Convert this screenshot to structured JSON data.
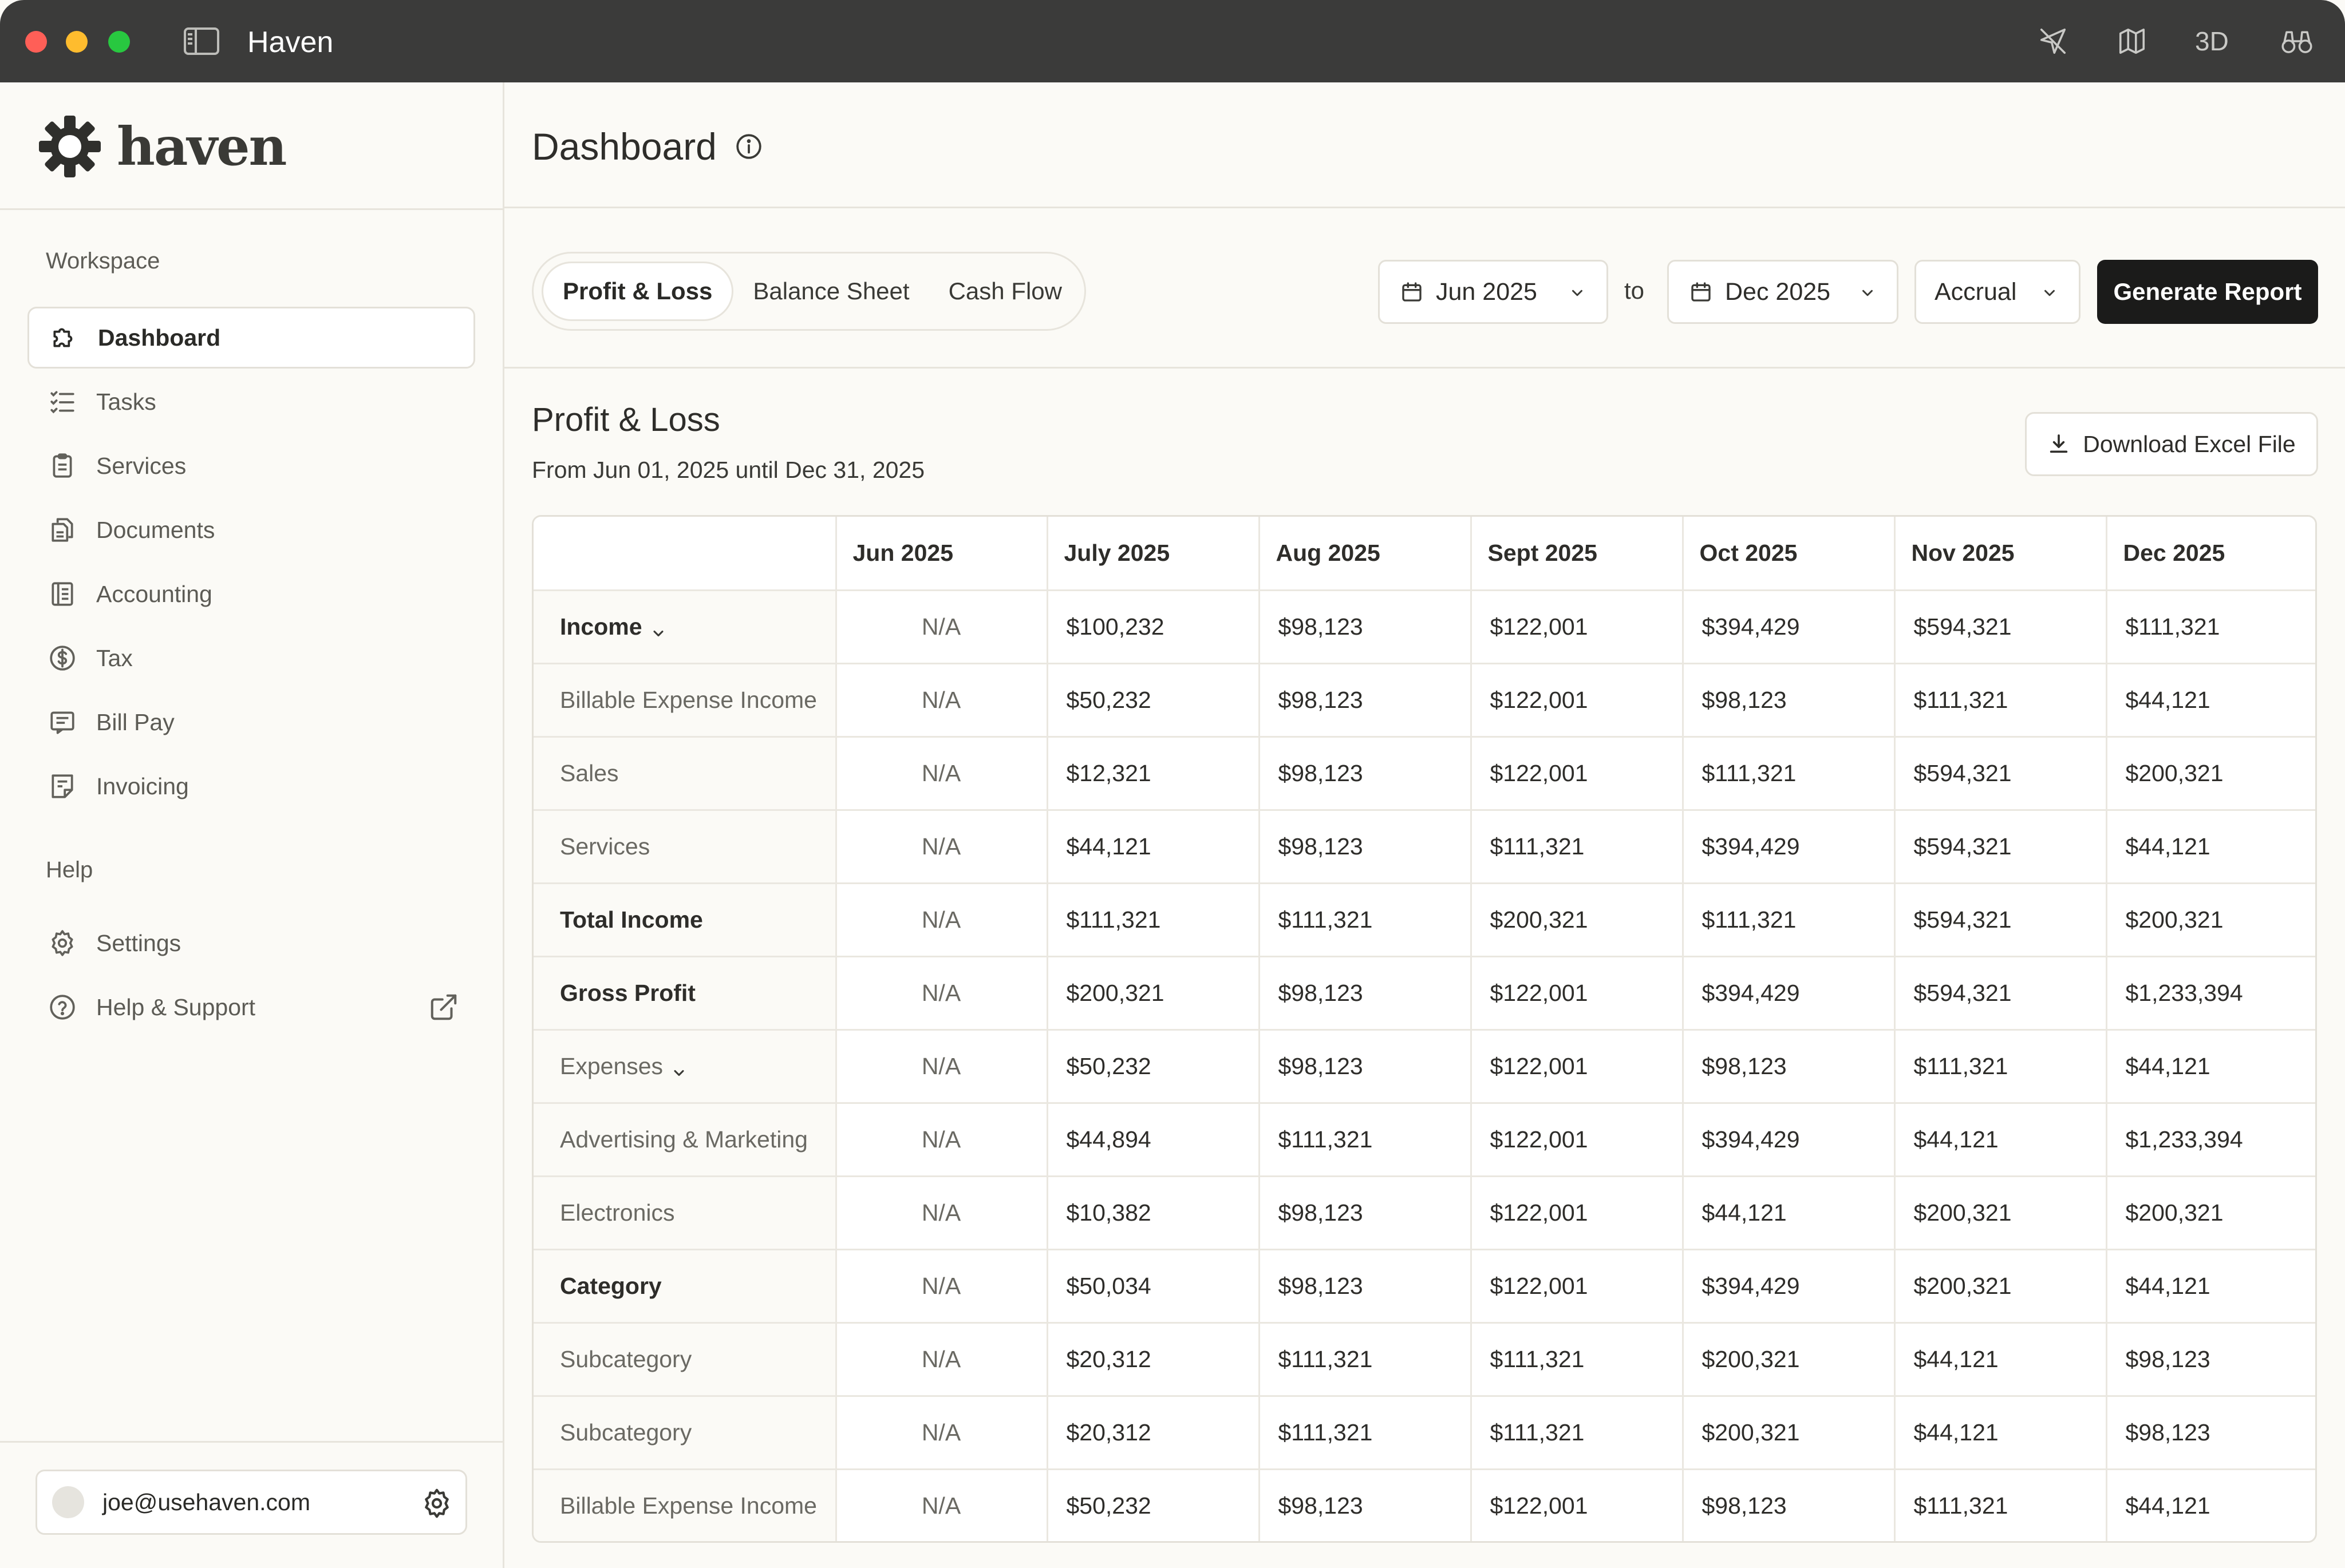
{
  "window": {
    "title": "Haven",
    "toolbar_icons": [
      "paper-plane-icon",
      "map-icon",
      "3d-label",
      "binoculars-icon"
    ],
    "toolbar_3d_label": "3D"
  },
  "brand": {
    "name": "haven",
    "logo": "haven-logo"
  },
  "sidebar": {
    "workspace_label": "Workspace",
    "items": [
      {
        "label": "Dashboard",
        "icon": "puzzle-icon",
        "active": true
      },
      {
        "label": "Tasks",
        "icon": "checklist-icon"
      },
      {
        "label": "Services",
        "icon": "clipboard-icon"
      },
      {
        "label": "Documents",
        "icon": "documents-icon"
      },
      {
        "label": "Accounting",
        "icon": "ledger-icon"
      },
      {
        "label": "Tax",
        "icon": "dollar-circle-icon"
      },
      {
        "label": "Bill Pay",
        "icon": "receipt-icon"
      },
      {
        "label": "Invoicing",
        "icon": "invoice-icon"
      }
    ],
    "help_label": "Help",
    "help_items": [
      {
        "label": "Settings",
        "icon": "gear-icon"
      },
      {
        "label": "Help & Support",
        "icon": "question-circle-icon",
        "trailing_icon": "external-link-icon"
      }
    ],
    "account": {
      "email": "joe@usehaven.com"
    }
  },
  "header": {
    "title": "Dashboard"
  },
  "tabs": [
    {
      "label": "Profit & Loss",
      "active": true
    },
    {
      "label": "Balance Sheet"
    },
    {
      "label": "Cash Flow"
    }
  ],
  "filters": {
    "from": "Jun 2025",
    "to_label": "to",
    "to": "Dec 2025",
    "method": "Accrual",
    "generate_label": "Generate Report"
  },
  "report": {
    "title": "Profit & Loss",
    "subtitle": "From Jun 01, 2025 until Dec 31, 2025",
    "download_label": "Download Excel File",
    "columns": [
      "",
      "Jun 2025",
      "July 2025",
      "Aug  2025",
      "Sept 2025",
      "Oct 2025",
      "Nov 2025",
      "Dec 2025"
    ],
    "rows": [
      {
        "label": "Income",
        "bold": true,
        "expandable": true,
        "values": [
          "N/A",
          "$100,232",
          "$98,123",
          "$122,001",
          "$394,429",
          "$594,321",
          "$111,321"
        ]
      },
      {
        "label": "Billable Expense Income",
        "values": [
          "N/A",
          "$50,232",
          "$98,123",
          "$122,001",
          "$98,123",
          "$111,321",
          "$44,121"
        ]
      },
      {
        "label": "Sales",
        "values": [
          "N/A",
          "$12,321",
          "$98,123",
          "$122,001",
          "$111,321",
          "$594,321",
          "$200,321"
        ]
      },
      {
        "label": "Services",
        "values": [
          "N/A",
          "$44,121",
          "$98,123",
          "$111,321",
          "$394,429",
          "$594,321",
          "$44,121"
        ]
      },
      {
        "label": "Total Income",
        "bold": true,
        "values": [
          "N/A",
          "$111,321",
          "$111,321",
          "$200,321",
          "$111,321",
          "$594,321",
          "$200,321"
        ]
      },
      {
        "label": "Gross Profit",
        "bold": true,
        "values": [
          "N/A",
          "$200,321",
          "$98,123",
          "$122,001",
          "$394,429",
          "$594,321",
          "$1,233,394"
        ]
      },
      {
        "label": "Expenses",
        "expandable": true,
        "values": [
          "N/A",
          "$50,232",
          "$98,123",
          "$122,001",
          "$98,123",
          "$111,321",
          "$44,121"
        ]
      },
      {
        "label": "Advertising & Marketing",
        "values": [
          "N/A",
          "$44,894",
          "$111,321",
          "$122,001",
          "$394,429",
          "$44,121",
          "$1,233,394"
        ]
      },
      {
        "label": "Electronics",
        "values": [
          "N/A",
          "$10,382",
          "$98,123",
          "$122,001",
          "$44,121",
          "$200,321",
          "$200,321"
        ]
      },
      {
        "label": "Category",
        "bold": true,
        "values": [
          "N/A",
          "$50,034",
          "$98,123",
          "$122,001",
          "$394,429",
          "$200,321",
          "$44,121"
        ]
      },
      {
        "label": "Subcategory",
        "values": [
          "N/A",
          "$20,312",
          "$111,321",
          "$111,321",
          "$200,321",
          "$44,121",
          "$98,123"
        ]
      },
      {
        "label": "Subcategory",
        "values": [
          "N/A",
          "$20,312",
          "$111,321",
          "$111,321",
          "$200,321",
          "$44,121",
          "$98,123"
        ]
      },
      {
        "label": "Billable Expense Income",
        "values": [
          "N/A",
          "$50,232",
          "$98,123",
          "$122,001",
          "$98,123",
          "$111,321",
          "$44,121"
        ]
      }
    ]
  }
}
